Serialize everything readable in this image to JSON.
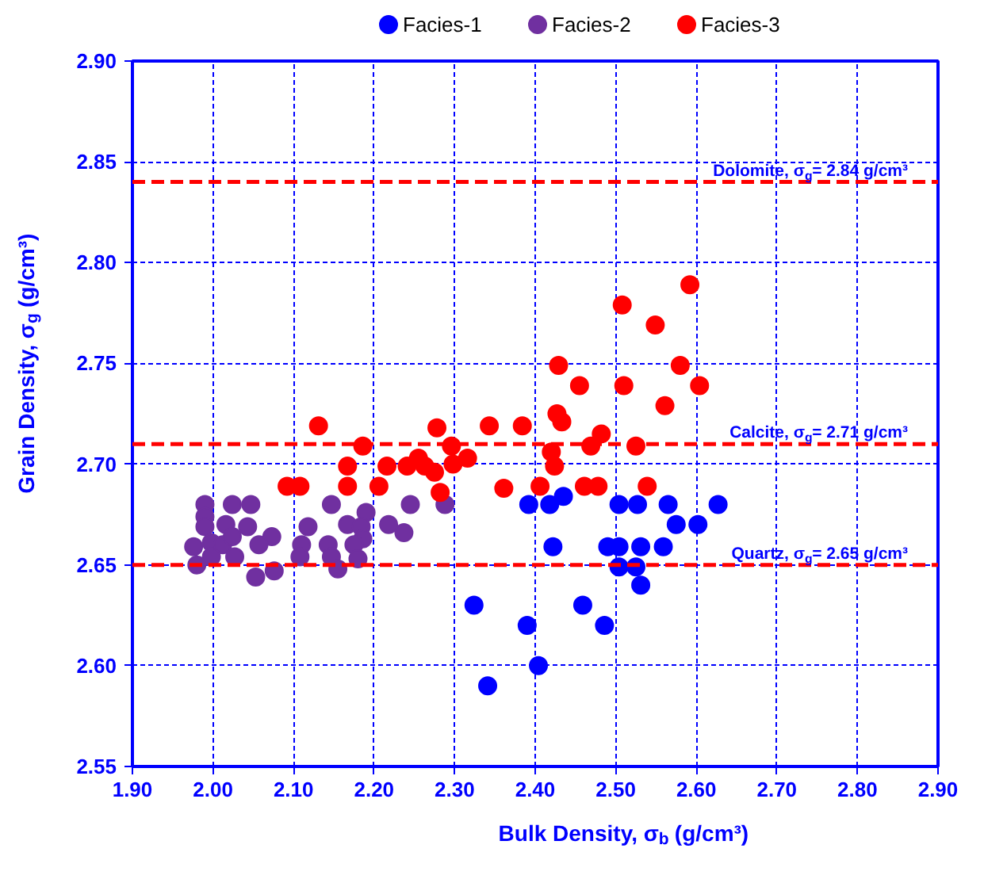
{
  "chart_data": {
    "type": "scatter",
    "xlabel": "Bulk Density, σ$_{b}$ (g/cm³)",
    "ylabel": "Grain Density, σ$_{g}$ (g/cm³)",
    "xlim": [
      1.9,
      2.9
    ],
    "ylim": [
      2.55,
      2.9
    ],
    "xticks": [
      {
        "value": 1.9,
        "label": "1.90"
      },
      {
        "value": 2.0,
        "label": "2.00"
      },
      {
        "value": 2.1,
        "label": "2.10"
      },
      {
        "value": 2.2,
        "label": "2.20"
      },
      {
        "value": 2.3,
        "label": "2.30"
      },
      {
        "value": 2.4,
        "label": "2.40"
      },
      {
        "value": 2.5,
        "label": "2.50"
      },
      {
        "value": 2.6,
        "label": "2.60"
      },
      {
        "value": 2.7,
        "label": "2.70"
      },
      {
        "value": 2.8,
        "label": "2.80"
      },
      {
        "value": 2.9,
        "label": "2.90"
      }
    ],
    "yticks": [
      {
        "value": 2.55,
        "label": "2.55"
      },
      {
        "value": 2.6,
        "label": "2.60"
      },
      {
        "value": 2.65,
        "label": "2.65"
      },
      {
        "value": 2.7,
        "label": "2.70"
      },
      {
        "value": 2.75,
        "label": "2.75"
      },
      {
        "value": 2.8,
        "label": "2.80"
      },
      {
        "value": 2.85,
        "label": "2.85"
      },
      {
        "value": 2.9,
        "label": "2.90"
      }
    ],
    "grid": true,
    "legend": "top",
    "marker": "circle",
    "series": [
      {
        "name": "Facies-1",
        "color": "#0000ff",
        "x": [
          2.392,
          2.418,
          2.435,
          2.504,
          2.527,
          2.565,
          2.575,
          2.602,
          2.627,
          2.422,
          2.49,
          2.504,
          2.531,
          2.559,
          2.504,
          2.525,
          2.531,
          2.324,
          2.39,
          2.459,
          2.486,
          2.404,
          2.341
        ],
        "values": [
          2.68,
          2.68,
          2.684,
          2.68,
          2.68,
          2.68,
          2.67,
          2.67,
          2.68,
          2.659,
          2.659,
          2.659,
          2.659,
          2.659,
          2.649,
          2.649,
          2.64,
          2.63,
          2.62,
          2.63,
          2.62,
          2.6,
          2.59
        ]
      },
      {
        "name": "Facies-2",
        "color": "#7030a0",
        "x": [
          1.99,
          2.024,
          2.047,
          1.99,
          1.99,
          2.016,
          2.043,
          2.073,
          1.976,
          1.998,
          2.012,
          2.024,
          2.057,
          1.98,
          1.998,
          2.027,
          2.053,
          2.076,
          2.147,
          2.118,
          2.11,
          2.108,
          2.143,
          2.147,
          2.155,
          2.167,
          2.19,
          2.184,
          2.186,
          2.175,
          2.18,
          2.218,
          2.237,
          2.245,
          2.288
        ],
        "values": [
          2.68,
          2.68,
          2.68,
          2.674,
          2.669,
          2.67,
          2.669,
          2.664,
          2.659,
          2.661,
          2.66,
          2.664,
          2.66,
          2.65,
          2.654,
          2.654,
          2.644,
          2.647,
          2.68,
          2.669,
          2.66,
          2.654,
          2.66,
          2.654,
          2.648,
          2.67,
          2.676,
          2.669,
          2.663,
          2.66,
          2.653,
          2.67,
          2.666,
          2.68,
          2.68
        ]
      },
      {
        "name": "Facies-3",
        "color": "#ff0000",
        "x": [
          2.592,
          2.508,
          2.549,
          2.429,
          2.58,
          2.455,
          2.51,
          2.604,
          2.561,
          2.427,
          2.433,
          2.343,
          2.384,
          2.482,
          2.469,
          2.525,
          2.296,
          2.42,
          2.316,
          2.298,
          2.424,
          2.361,
          2.406,
          2.461,
          2.478,
          2.539,
          2.131,
          2.186,
          2.278,
          2.167,
          2.216,
          2.241,
          2.255,
          2.263,
          2.275,
          2.092,
          2.108,
          2.167,
          2.206,
          2.282
        ],
        "values": [
          2.789,
          2.779,
          2.769,
          2.749,
          2.749,
          2.739,
          2.739,
          2.739,
          2.729,
          2.725,
          2.721,
          2.719,
          2.719,
          2.715,
          2.709,
          2.709,
          2.709,
          2.706,
          2.703,
          2.7,
          2.699,
          2.688,
          2.689,
          2.689,
          2.689,
          2.689,
          2.719,
          2.709,
          2.718,
          2.699,
          2.699,
          2.699,
          2.703,
          2.699,
          2.696,
          2.689,
          2.689,
          2.689,
          2.689,
          2.686
        ]
      }
    ],
    "ref_lines": [
      {
        "axis": "y",
        "value": 2.84,
        "label": "Dolomite, σ$_{g}$= 2.84 g/cm³",
        "color": "#ff0000",
        "line_style": "dashed"
      },
      {
        "axis": "y",
        "value": 2.71,
        "label": "Calcite, σ$_{g}$= 2.71 g/cm³",
        "color": "#ff0000",
        "line_style": "dashed"
      },
      {
        "axis": "y",
        "value": 2.65,
        "label": "Quartz, σ$_{g}$= 2.65 g/cm³",
        "color": "#ff0000",
        "line_style": "dashed"
      }
    ]
  }
}
